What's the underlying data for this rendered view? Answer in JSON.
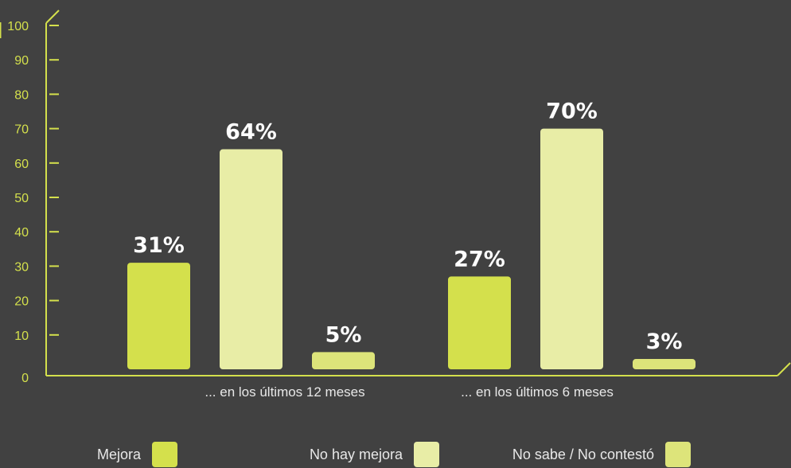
{
  "chart_data": {
    "type": "bar",
    "categories": [
      "... en los últimos 12 meses",
      "...  en los últimos 6 meses"
    ],
    "series": [
      {
        "name": "Mejora",
        "values": [
          31,
          27
        ],
        "labels": [
          "31%",
          "27%"
        ],
        "color": "#d4e04c"
      },
      {
        "name": "No hay mejora",
        "values": [
          64,
          70
        ],
        "labels": [
          "64%",
          "70%"
        ],
        "color": "#e8eda6"
      },
      {
        "name": "No sabe / No contestó",
        "values": [
          5,
          3
        ],
        "labels": [
          "5%",
          "3%"
        ],
        "color": "#dde47a"
      }
    ],
    "yticks": [
      0,
      10,
      20,
      30,
      40,
      50,
      60,
      70,
      80,
      90,
      100
    ],
    "ylim": [
      0,
      100
    ],
    "legend_position": "bottom",
    "grid": false,
    "colors": {
      "background": "#414141",
      "axis": "#d4e04c",
      "label_text": "#e8e8e8",
      "value_text": "#ffffff"
    }
  }
}
